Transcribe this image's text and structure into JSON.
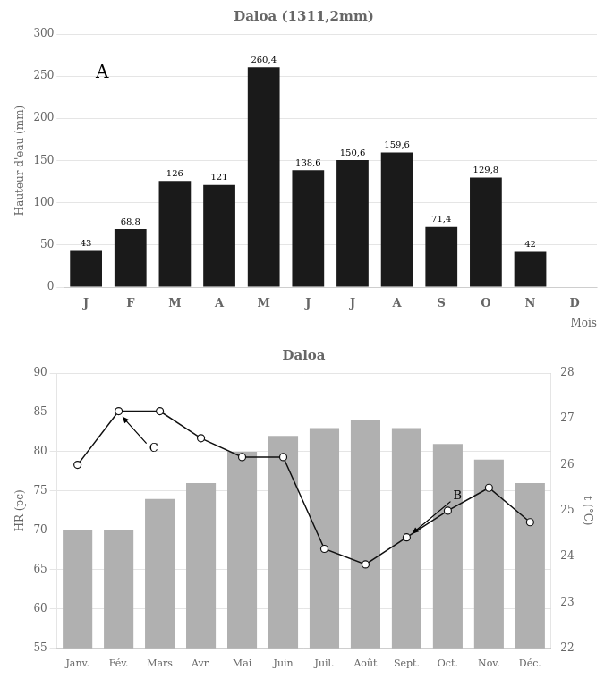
{
  "chart_data": [
    {
      "type": "bar",
      "title": "Daloa (1311,2mm)",
      "xlabel": "Mois",
      "ylabel": "Hauteur d'eau (mm)",
      "annotations": [
        {
          "text": "A"
        }
      ],
      "categories": [
        "J",
        "F",
        "M",
        "A",
        "M",
        "J",
        "J",
        "A",
        "S",
        "O",
        "N",
        "D"
      ],
      "values": [
        43,
        68.8,
        126,
        121,
        260.4,
        138.6,
        150.6,
        159.6,
        71.4,
        129.8,
        42,
        0
      ],
      "value_labels": [
        "43",
        "68,8",
        "126",
        "121",
        "260,4",
        "138,6",
        "150,6",
        "159,6",
        "71,4",
        "129,8",
        "42",
        null
      ],
      "data_labels": true,
      "color": "#1a1a1a",
      "ylim": [
        0,
        300
      ],
      "yticks": [
        0,
        50,
        100,
        150,
        200,
        250,
        300
      ],
      "grid": true
    },
    {
      "type": "bar",
      "title": "Daloa",
      "ylabel": "HR (pc)",
      "y2label": "t (°C)",
      "annotations": [
        {
          "text": "C",
          "x": "Fév."
        },
        {
          "text": "B",
          "x": "Sept."
        }
      ],
      "categories": [
        "Janv.",
        "Fév.",
        "Mars",
        "Avr.",
        "Mai",
        "Juin",
        "Juil.",
        "Août",
        "Sept.",
        "Oct.",
        "Nov.",
        "Déc."
      ],
      "series": [
        {
          "type": "bar",
          "color": "#b0b0b0",
          "values": [
            70,
            70,
            74,
            76,
            80,
            82,
            83,
            84,
            83,
            81,
            79,
            76
          ]
        },
        {
          "type": "line",
          "color": "#111111",
          "marker": "circle",
          "axis": "y2",
          "values": [
            26.0,
            27.17,
            27.17,
            26.58,
            26.17,
            26.17,
            24.17,
            23.83,
            24.42,
            25.0,
            25.5,
            24.75
          ]
        }
      ],
      "ylim": [
        55,
        90
      ],
      "yticks": [
        55,
        60,
        65,
        70,
        75,
        80,
        85,
        90
      ],
      "y2lim": [
        22,
        28
      ],
      "y2ticks": [
        22,
        23,
        24,
        25,
        26,
        27,
        28
      ],
      "grid": true
    }
  ]
}
